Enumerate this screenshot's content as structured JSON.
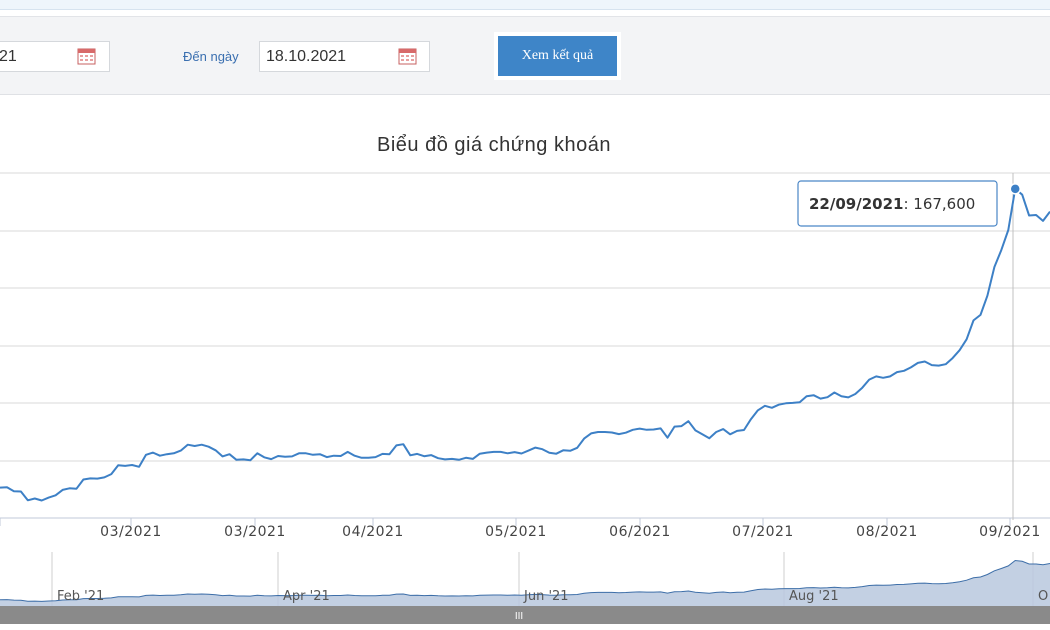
{
  "filters": {
    "from_date": "21",
    "to_label": "Đến ngày",
    "to_date": "18.10.2021",
    "submit_label": "Xem kết quả"
  },
  "icons": {
    "calendar": "calendar-icon"
  },
  "colors": {
    "line": "#3d80c6",
    "accent": "#3e85c8",
    "navigator_fill": "#b8c8de"
  },
  "chart_data": {
    "type": "line",
    "title": "Biểu đồ giá chứng khoán",
    "x_ticks": [
      "",
      "03/2021",
      "03/2021",
      "04/2021",
      "05/2021",
      "06/2021",
      "07/2021",
      "08/2021",
      "09/2021"
    ],
    "navigator_labels": [
      "Feb '21",
      "Apr '21",
      "Jun '21",
      "Aug '21",
      "O"
    ],
    "navigator_handle": "III",
    "tooltip": {
      "date": "22/09/2021",
      "value": "167,600"
    },
    "grid": true,
    "series": [
      {
        "values": [
          99000,
          99100,
          98200,
          98150,
          96200,
          96600,
          96150,
          96800,
          97300,
          98500,
          98850,
          98750,
          100800,
          101050,
          101000,
          101250,
          102000,
          103950,
          103800,
          104000,
          103600,
          106250,
          106750,
          106050,
          106400,
          106600,
          107200,
          108500,
          108200,
          108500,
          108050,
          107250,
          105900,
          106400,
          105150,
          105250,
          105050,
          106600,
          105700,
          105300,
          106000,
          105850,
          105900,
          106600,
          106600,
          106250,
          106400,
          105750,
          106050,
          106000,
          106900,
          106050,
          105600,
          105600,
          105750,
          106450,
          106400,
          108350,
          108600,
          106150,
          106450,
          105950,
          106200,
          105500,
          105250,
          105350,
          105150,
          105600,
          105350,
          106500,
          106750,
          106900,
          106900,
          106600,
          106850,
          106550,
          107200,
          107850,
          107500,
          106700,
          106500,
          107250,
          107150,
          107800,
          109850,
          111000,
          111300,
          111300,
          111200,
          110850,
          111150,
          111800,
          112050,
          111800,
          111850,
          112100,
          110050,
          112500,
          112600,
          113700,
          111650,
          110800,
          109900,
          111300,
          111950,
          110800,
          111550,
          111750,
          114150,
          116100,
          117100,
          116650,
          117350,
          117650,
          117750,
          117900,
          119200,
          119450,
          118700,
          119000,
          120050,
          119200,
          118950,
          119700,
          121100,
          122900,
          123600,
          123300,
          123600,
          124550,
          124850,
          125600,
          126600,
          126900,
          126100,
          126000,
          126300,
          127650,
          129400,
          131800,
          136000,
          137200,
          141450,
          147800,
          151550,
          156000,
          165100,
          163800,
          159200,
          159300,
          158000,
          160050
        ]
      }
    ]
  }
}
